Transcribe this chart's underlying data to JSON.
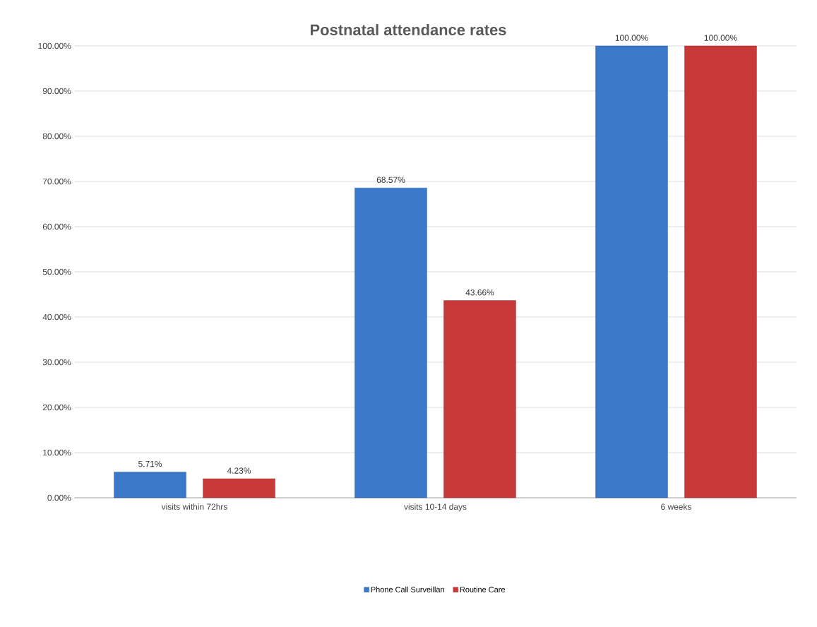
{
  "chart_data": {
    "type": "bar",
    "title": "Postnatal attendance rates",
    "categories": [
      "visits within 72hrs",
      "visits 10-14 days",
      "6 weeks"
    ],
    "series": [
      {
        "name": "Phone Call Surveillan",
        "color": "#3a78c9",
        "values": [
          5.71,
          68.57,
          100
        ],
        "value_labels": [
          "5.71%",
          "68.57%",
          "100.00%"
        ]
      },
      {
        "name": "Routine Care",
        "color": "#c83a3a",
        "values": [
          4.23,
          43.66,
          100
        ],
        "value_labels": [
          "4.23%",
          "43.66%",
          "100.00%"
        ]
      }
    ],
    "ylim": [
      0,
      100
    ],
    "yticks": [
      {
        "value": 0,
        "label": "0.00%"
      },
      {
        "value": 10,
        "label": "10.00%"
      },
      {
        "value": 20,
        "label": "20.00%"
      },
      {
        "value": 30,
        "label": "30.00%"
      },
      {
        "value": 40,
        "label": "40.00%"
      },
      {
        "value": 50,
        "label": "50.00%"
      },
      {
        "value": 60,
        "label": "60.00%"
      },
      {
        "value": 70,
        "label": "70.00%"
      },
      {
        "value": 80,
        "label": "80.00%"
      },
      {
        "value": 90,
        "label": "90.00%"
      },
      {
        "value": 100,
        "label": "100.00%"
      }
    ],
    "grid": "y",
    "legend": "bottom"
  }
}
